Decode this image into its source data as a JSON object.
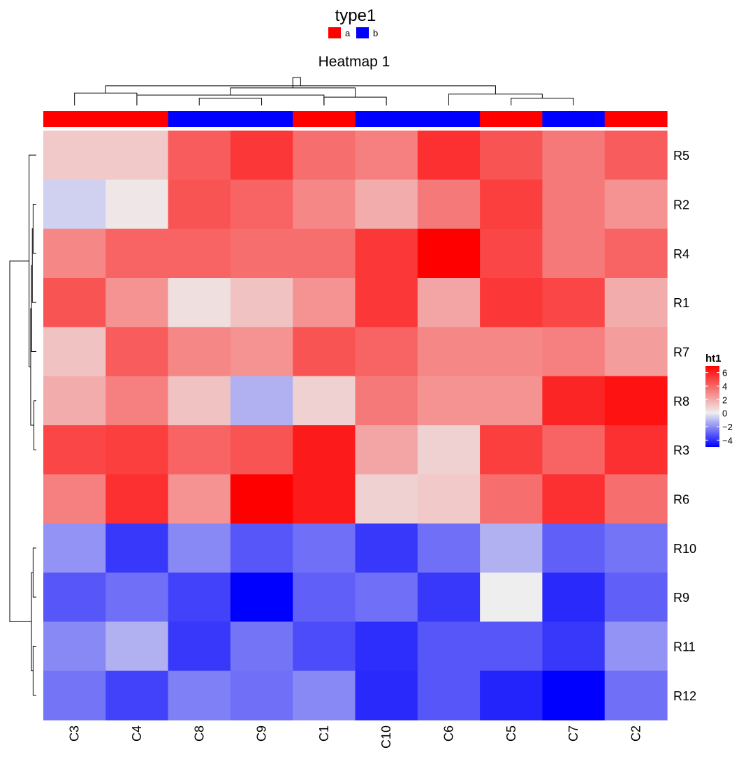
{
  "chart_data": {
    "type": "heatmap",
    "title": "Heatmap 1",
    "columns": [
      "C3",
      "C4",
      "C8",
      "C9",
      "C1",
      "C10",
      "C6",
      "C5",
      "C7",
      "C2"
    ],
    "rows": [
      "R5",
      "R2",
      "R4",
      "R1",
      "R7",
      "R8",
      "R3",
      "R6",
      "R10",
      "R9",
      "R11",
      "R12"
    ],
    "values": [
      [
        1.0,
        1.0,
        4.0,
        5.0,
        3.5,
        3.0,
        5.2,
        4.2,
        3.2,
        4.0
      ],
      [
        -0.6,
        0.2,
        4.2,
        3.8,
        2.8,
        1.8,
        3.2,
        4.8,
        3.2,
        2.5
      ],
      [
        2.8,
        3.8,
        3.8,
        3.5,
        3.5,
        5.0,
        6.5,
        4.6,
        3.2,
        3.8
      ],
      [
        4.2,
        2.5,
        0.4,
        1.2,
        2.5,
        5.0,
        2.0,
        5.0,
        4.6,
        1.8
      ],
      [
        1.2,
        4.0,
        2.8,
        2.5,
        4.2,
        3.8,
        2.8,
        2.8,
        3.0,
        2.2
      ],
      [
        1.8,
        3.0,
        1.2,
        -1.2,
        0.8,
        3.2,
        2.5,
        2.5,
        5.5,
        6.0
      ],
      [
        4.6,
        4.8,
        3.8,
        4.2,
        5.8,
        2.0,
        0.8,
        4.8,
        3.8,
        5.2
      ],
      [
        3.0,
        5.2,
        2.5,
        6.5,
        5.8,
        0.8,
        1.0,
        3.5,
        5.2,
        3.5
      ],
      [
        -1.8,
        -3.6,
        -2.0,
        -3.0,
        -2.5,
        -3.6,
        -2.5,
        -1.2,
        -2.8,
        -2.4
      ],
      [
        -3.0,
        -2.5,
        -3.4,
        -4.7,
        -2.8,
        -2.5,
        -3.6,
        0.0,
        -3.9,
        -2.8
      ],
      [
        -2.0,
        -1.2,
        -3.6,
        -2.4,
        -3.2,
        -3.8,
        -3.0,
        -3.0,
        -3.6,
        -1.8
      ],
      [
        -2.4,
        -3.4,
        -2.2,
        -2.5,
        -2.0,
        -3.9,
        -3.0,
        -4.0,
        -4.7,
        -2.5
      ]
    ],
    "column_annotation": {
      "name": "type1",
      "values": [
        "a",
        "a",
        "b",
        "b",
        "a",
        "b",
        "b",
        "a",
        "b",
        "a"
      ],
      "legend": [
        {
          "label": "a",
          "color": "#ff0000"
        },
        {
          "label": "b",
          "color": "#0000ff"
        }
      ]
    },
    "color_scale": {
      "name": "ht1",
      "min": -4.7,
      "mid": 0,
      "max": 6.5,
      "low_color": "#0000ff",
      "mid_color": "#eeeeee",
      "high_color": "#ff0000",
      "legend_ticks": [
        "6",
        "4",
        "2",
        "0",
        "−2",
        "−4"
      ],
      "legend_tick_values": [
        6,
        4,
        2,
        0,
        -2,
        -4
      ]
    },
    "column_dendrogram": {
      "merges": [
        [
          3,
          4,
          0.7
        ],
        [
          2,
          5,
          1.0
        ],
        [
          5,
          6,
          0.8
        ],
        [
          1,
          2,
          1.2
        ],
        [
          8,
          9,
          0.7
        ],
        [
          7,
          -5,
          1.1
        ],
        [
          -2,
          -3,
          1.7
        ],
        [
          -4,
          -6,
          1.9
        ],
        [
          -7,
          -8,
          2.7
        ]
      ]
    },
    "row_dendrogram": {
      "merges": [
        [
          2,
          3,
          0.4
        ],
        [
          4,
          -1,
          0.5
        ],
        [
          6,
          7,
          0.3
        ],
        [
          5,
          -2,
          0.6
        ],
        [
          -4,
          -3,
          0.7
        ],
        [
          1,
          -5,
          0.9
        ],
        [
          9,
          10,
          0.4
        ],
        [
          11,
          12,
          0.4
        ],
        [
          -7,
          -8,
          0.6
        ],
        [
          -6,
          -9,
          3.3
        ]
      ]
    }
  }
}
